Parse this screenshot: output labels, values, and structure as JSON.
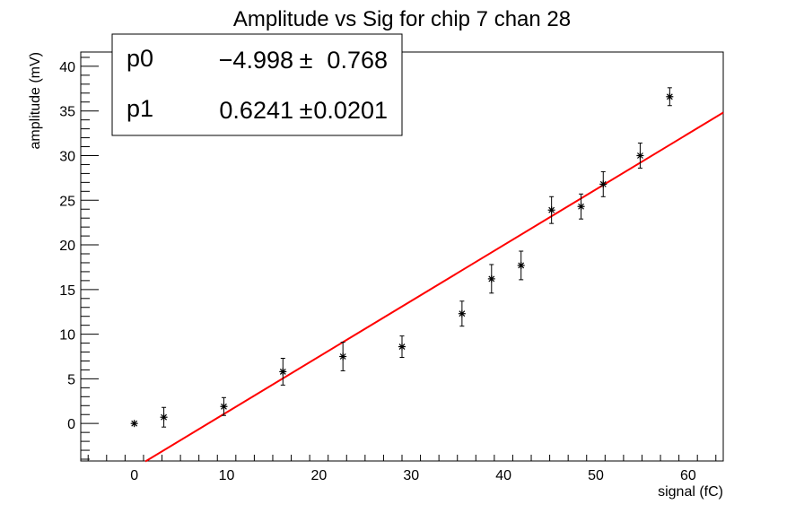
{
  "chart_data": {
    "type": "scatter",
    "title": "Amplitude vs Sig for chip 7 chan 28",
    "xlabel": "signal (fC)",
    "ylabel": "amplitude (mV)",
    "xlim": [
      -5.8,
      63.8
    ],
    "ylim": [
      -4.2,
      41.6
    ],
    "x_ticks": [
      0,
      10,
      20,
      30,
      40,
      50,
      60
    ],
    "y_ticks": [
      0,
      5,
      10,
      15,
      20,
      25,
      30,
      35,
      40
    ],
    "grid": false,
    "points": [
      {
        "x": 0.0,
        "y": 0.0,
        "err": 0.0
      },
      {
        "x": 3.2,
        "y": 0.7,
        "err": 1.1
      },
      {
        "x": 9.7,
        "y": 1.9,
        "err": 1.0
      },
      {
        "x": 16.1,
        "y": 5.8,
        "err": 1.5
      },
      {
        "x": 22.6,
        "y": 7.5,
        "err": 1.6
      },
      {
        "x": 29.0,
        "y": 8.6,
        "err": 1.2
      },
      {
        "x": 35.5,
        "y": 12.3,
        "err": 1.4
      },
      {
        "x": 38.7,
        "y": 16.2,
        "err": 1.6
      },
      {
        "x": 41.9,
        "y": 17.7,
        "err": 1.6
      },
      {
        "x": 45.2,
        "y": 23.9,
        "err": 1.5
      },
      {
        "x": 48.4,
        "y": 24.3,
        "err": 1.4
      },
      {
        "x": 50.8,
        "y": 26.8,
        "err": 1.4
      },
      {
        "x": 54.8,
        "y": 30.0,
        "err": 1.4
      },
      {
        "x": 58.0,
        "y": 36.6,
        "err": 1.0
      }
    ],
    "fit": {
      "p0": -4.998,
      "p1": 0.6241,
      "x_range": [
        1.2,
        63.8
      ],
      "color": "#ff0000"
    },
    "stats_box": {
      "rows": [
        {
          "name": "p0",
          "value": "−4.998",
          "pm": "±",
          "error": "0.768"
        },
        {
          "name": "p1",
          "value": "0.6241",
          "pm": "±",
          "error": "0.0201"
        }
      ]
    }
  }
}
